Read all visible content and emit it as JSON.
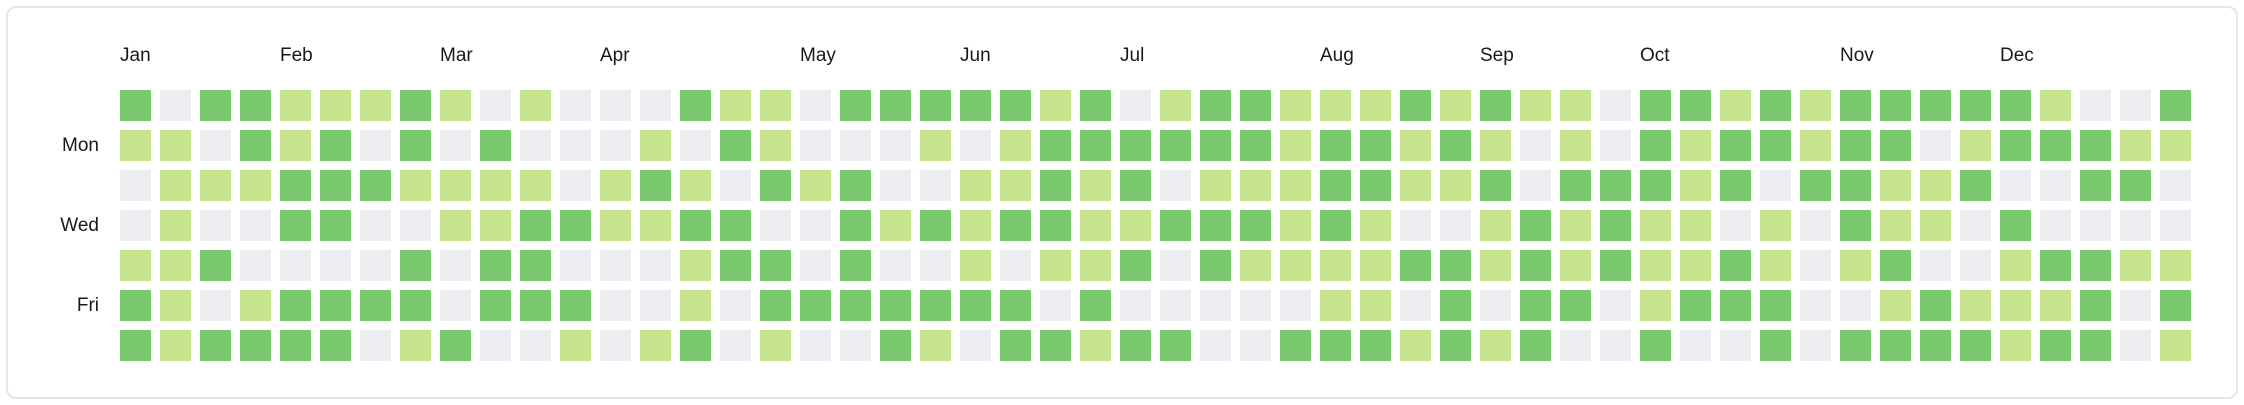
{
  "chart_data": {
    "type": "heatmap",
    "title": "",
    "weeks": 52,
    "days_per_week": 7,
    "grid": true,
    "legend_position": "none",
    "months": [
      {
        "label": "Jan",
        "week": 0
      },
      {
        "label": "Feb",
        "week": 4
      },
      {
        "label": "Mar",
        "week": 8
      },
      {
        "label": "Apr",
        "week": 12
      },
      {
        "label": "May",
        "week": 17
      },
      {
        "label": "Jun",
        "week": 21
      },
      {
        "label": "Jul",
        "week": 25
      },
      {
        "label": "Aug",
        "week": 30
      },
      {
        "label": "Sep",
        "week": 34
      },
      {
        "label": "Oct",
        "week": 38
      },
      {
        "label": "Nov",
        "week": 43
      },
      {
        "label": "Dec",
        "week": 47
      }
    ],
    "day_labels": [
      {
        "label": "Mon",
        "row": 1
      },
      {
        "label": "Wed",
        "row": 3
      },
      {
        "label": "Fri",
        "row": 5
      }
    ],
    "palette": [
      "#ebedf0",
      "#c6e48b",
      "#7bc96f"
    ],
    "values": [
      [
        2,
        0,
        2,
        2,
        1,
        1,
        1,
        2,
        1,
        0,
        1,
        0,
        0,
        0,
        2,
        1,
        1,
        0,
        2,
        2,
        2,
        2,
        2,
        1,
        2,
        0,
        1,
        2,
        2,
        1,
        1,
        1,
        2,
        1,
        2,
        1,
        1,
        0,
        2,
        2,
        1,
        2,
        1,
        2,
        2,
        2,
        2,
        2,
        1,
        0,
        0,
        2
      ],
      [
        1,
        1,
        0,
        2,
        1,
        2,
        0,
        2,
        0,
        2,
        0,
        0,
        0,
        1,
        0,
        2,
        1,
        0,
        0,
        0,
        1,
        0,
        1,
        2,
        2,
        2,
        2,
        2,
        2,
        1,
        2,
        2,
        1,
        2,
        1,
        0,
        1,
        0,
        2,
        1,
        2,
        2,
        1,
        2,
        2,
        0,
        1,
        2,
        2,
        2,
        1,
        1
      ],
      [
        0,
        1,
        1,
        1,
        2,
        2,
        2,
        1,
        1,
        1,
        1,
        0,
        1,
        2,
        1,
        0,
        2,
        1,
        2,
        0,
        0,
        1,
        1,
        2,
        1,
        2,
        0,
        1,
        1,
        1,
        2,
        2,
        1,
        1,
        2,
        0,
        2,
        2,
        2,
        1,
        2,
        0,
        2,
        2,
        1,
        1,
        2,
        0,
        0,
        2,
        2,
        0
      ],
      [
        0,
        1,
        0,
        0,
        2,
        2,
        0,
        0,
        1,
        1,
        2,
        2,
        1,
        1,
        2,
        2,
        0,
        0,
        2,
        1,
        2,
        1,
        2,
        2,
        1,
        1,
        2,
        2,
        2,
        1,
        2,
        1,
        0,
        0,
        1,
        2,
        1,
        2,
        1,
        1,
        0,
        1,
        0,
        2,
        1,
        1,
        0,
        2,
        0,
        0,
        0,
        0
      ],
      [
        1,
        1,
        2,
        0,
        0,
        0,
        0,
        2,
        0,
        2,
        2,
        0,
        0,
        0,
        1,
        2,
        2,
        0,
        2,
        0,
        0,
        1,
        0,
        1,
        1,
        2,
        0,
        2,
        1,
        1,
        1,
        1,
        2,
        2,
        1,
        2,
        1,
        2,
        1,
        1,
        2,
        1,
        0,
        1,
        2,
        0,
        0,
        1,
        2,
        2,
        1,
        1
      ],
      [
        2,
        1,
        0,
        1,
        2,
        2,
        2,
        2,
        0,
        2,
        2,
        2,
        0,
        0,
        1,
        0,
        2,
        2,
        2,
        2,
        2,
        2,
        2,
        0,
        2,
        0,
        0,
        0,
        0,
        0,
        1,
        1,
        0,
        2,
        0,
        2,
        2,
        0,
        1,
        2,
        2,
        2,
        0,
        0,
        1,
        2,
        1,
        1,
        1,
        2,
        0,
        2
      ],
      [
        2,
        1,
        2,
        2,
        2,
        2,
        0,
        1,
        2,
        0,
        0,
        1,
        0,
        1,
        2,
        0,
        1,
        0,
        0,
        2,
        1,
        0,
        2,
        2,
        1,
        2,
        2,
        0,
        0,
        2,
        2,
        2,
        1,
        2,
        1,
        2,
        0,
        0,
        2,
        0,
        0,
        2,
        0,
        2,
        2,
        2,
        2,
        1,
        2,
        2,
        0,
        1
      ]
    ]
  },
  "colors": {
    "card_background": "#ffffff",
    "card_border": "#e4e6e9",
    "label_text": "#17191c"
  }
}
